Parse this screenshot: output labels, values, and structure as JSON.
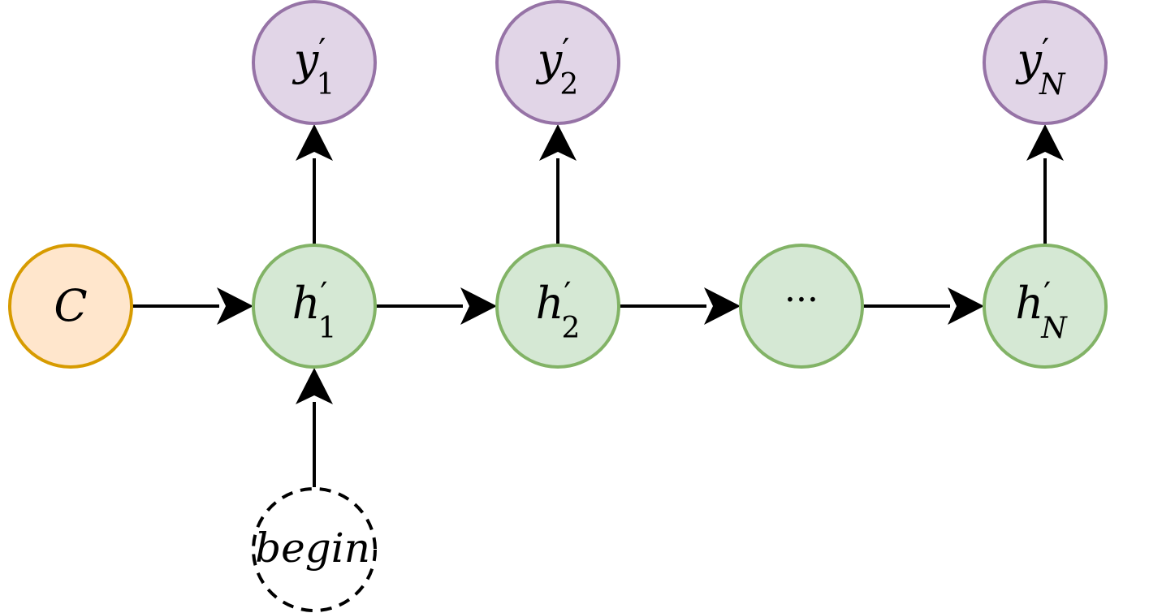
{
  "colors": {
    "context_fill": "#ffe6cc",
    "context_stroke": "#d79b00",
    "hidden_fill": "#d5e8d4",
    "hidden_stroke": "#82b366",
    "output_fill": "#e1d5e7",
    "output_stroke": "#9673a6",
    "edge": "#000000"
  },
  "nodes": {
    "context": {
      "label": "C"
    },
    "h1": {
      "label": "h",
      "prime": "′",
      "sub": "1"
    },
    "h2": {
      "label": "h",
      "prime": "′",
      "sub": "2"
    },
    "ellipsis": {
      "label": "···"
    },
    "hN": {
      "label": "h",
      "prime": "′",
      "sub": "N"
    },
    "y1": {
      "label": "y",
      "prime": "′",
      "sub": "1"
    },
    "y2": {
      "label": "y",
      "prime": "′",
      "sub": "2"
    },
    "yN": {
      "label": "y",
      "prime": "′",
      "sub": "N"
    },
    "begin": {
      "label": "begin",
      "style": "dashed"
    }
  },
  "edges": [
    {
      "from": "context",
      "to": "h1"
    },
    {
      "from": "h1",
      "to": "h2"
    },
    {
      "from": "h2",
      "to": "ellipsis"
    },
    {
      "from": "ellipsis",
      "to": "hN"
    },
    {
      "from": "h1",
      "to": "y1"
    },
    {
      "from": "h2",
      "to": "y2"
    },
    {
      "from": "hN",
      "to": "yN"
    },
    {
      "from": "begin",
      "to": "h1"
    }
  ]
}
